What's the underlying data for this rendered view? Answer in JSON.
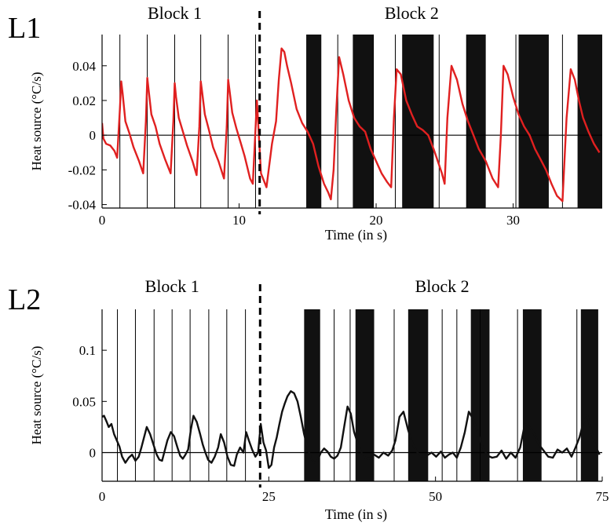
{
  "colors": {
    "trace_l1": "#e02020",
    "trace_l2": "#111111",
    "shade": "#111111",
    "axis": "#000000",
    "background": "#ffffff"
  },
  "chart_data": [
    {
      "panel_label": "L1",
      "type": "line",
      "xlabel": "Time (in s)",
      "ylabel": "Heat source (°C/s)",
      "xlim": [
        0,
        36.5
      ],
      "ylim": [
        -0.042,
        0.058
      ],
      "x_ticks": [
        0,
        10,
        20,
        30
      ],
      "y_ticks": [
        0.04,
        0.02,
        0,
        -0.02,
        -0.04
      ],
      "y_tick_labels": [
        "0.04",
        "0.02",
        "0",
        "-0.02",
        "-0.04"
      ],
      "grid": false,
      "zero_line": true,
      "block_labels": [
        {
          "label": "Block 1",
          "x": 5.3
        },
        {
          "label": "Block 2",
          "x": 22.6
        }
      ],
      "block_boundary": 11.5,
      "vertical_lines": [
        1.3,
        3.3,
        5.3,
        7.2,
        9.2,
        11.2,
        17.2,
        19.8,
        21.4,
        24.6,
        26.6,
        30.2,
        33.6
      ],
      "shaded_intervals": [
        [
          14.9,
          16.0
        ],
        [
          18.3,
          19.8
        ],
        [
          21.9,
          24.2
        ],
        [
          26.6,
          28.0
        ],
        [
          30.4,
          32.6
        ],
        [
          34.7,
          36.5
        ]
      ],
      "series": [
        {
          "x": [
            0,
            0.1,
            0.3,
            0.6,
            0.9,
            1.1,
            1.3,
            1.4,
            1.5,
            1.7,
            2.0,
            2.3,
            2.7,
            3.0,
            3.2,
            3.3,
            3.4,
            3.6,
            3.9,
            4.2,
            4.6,
            5.0,
            5.2,
            5.3,
            5.4,
            5.6,
            5.9,
            6.2,
            6.6,
            6.9,
            7.1,
            7.2,
            7.3,
            7.5,
            7.8,
            8.1,
            8.5,
            8.9,
            9.1,
            9.2,
            9.3,
            9.5,
            9.8,
            10.1,
            10.4,
            10.8,
            11.0,
            11.3,
            11.6,
            12.0,
            12.4,
            12.7,
            12.9,
            13.1,
            13.3,
            13.5,
            13.8,
            14.2,
            14.6,
            15.0,
            15.4,
            15.8,
            16.2,
            16.5,
            16.7,
            16.9,
            17.1,
            17.3,
            17.6,
            18.0,
            18.4,
            18.8,
            19.2,
            19.6,
            20.0,
            20.4,
            20.8,
            21.1,
            21.3,
            21.5,
            21.8,
            22.2,
            22.6,
            23.0,
            23.4,
            23.8,
            24.2,
            24.5,
            24.8,
            25.0,
            25.2,
            25.5,
            25.9,
            26.3,
            26.7,
            27.1,
            27.5,
            28.0,
            28.5,
            28.9,
            29.1,
            29.3,
            29.6,
            30.0,
            30.4,
            30.8,
            31.2,
            31.6,
            32.0,
            32.4,
            32.8,
            33.2,
            33.6,
            33.9,
            34.2,
            34.5,
            34.8,
            35.1,
            35.5,
            35.9,
            36.3
          ],
          "y": [
            0.007,
            -0.002,
            -0.005,
            -0.006,
            -0.009,
            -0.013,
            0.015,
            0.031,
            0.024,
            0.008,
            0.001,
            -0.007,
            -0.015,
            -0.022,
            0.008,
            0.033,
            0.026,
            0.012,
            0.005,
            -0.005,
            -0.014,
            -0.022,
            0.008,
            0.03,
            0.022,
            0.01,
            0.002,
            -0.006,
            -0.015,
            -0.023,
            0.005,
            0.031,
            0.025,
            0.012,
            0.003,
            -0.007,
            -0.015,
            -0.025,
            0.005,
            0.032,
            0.026,
            0.013,
            0.004,
            -0.004,
            -0.012,
            -0.025,
            -0.028,
            0.02,
            -0.022,
            -0.03,
            -0.005,
            0.008,
            0.032,
            0.05,
            0.048,
            0.04,
            0.03,
            0.015,
            0.007,
            0.002,
            -0.005,
            -0.018,
            -0.028,
            -0.033,
            -0.037,
            -0.02,
            0.015,
            0.045,
            0.035,
            0.02,
            0.01,
            0.005,
            0.002,
            -0.008,
            -0.015,
            -0.022,
            -0.027,
            -0.03,
            0.01,
            0.038,
            0.035,
            0.02,
            0.012,
            0.005,
            0.003,
            0.0,
            -0.008,
            -0.015,
            -0.022,
            -0.028,
            0.01,
            0.04,
            0.032,
            0.018,
            0.008,
            0.0,
            -0.008,
            -0.015,
            -0.025,
            -0.03,
            0.0,
            0.04,
            0.035,
            0.022,
            0.012,
            0.005,
            0.0,
            -0.008,
            -0.014,
            -0.02,
            -0.028,
            -0.035,
            -0.038,
            0.01,
            0.038,
            0.032,
            0.02,
            0.01,
            0.002,
            -0.005,
            -0.01
          ]
        }
      ]
    },
    {
      "panel_label": "L2",
      "type": "line",
      "xlabel": "Time (in s)",
      "ylabel": "Heat source (°C/s)",
      "xlim": [
        0,
        75
      ],
      "ylim": [
        -0.028,
        0.14
      ],
      "x_ticks": [
        0,
        25,
        50,
        75
      ],
      "y_ticks": [
        0.1,
        0.05,
        0
      ],
      "y_tick_labels": [
        "0.1",
        "0.05",
        "0"
      ],
      "grid": false,
      "zero_line": true,
      "block_labels": [
        {
          "label": "Block 1",
          "x": 10.5
        },
        {
          "label": "Block 2",
          "x": 51
        }
      ],
      "block_boundary": 23.7,
      "vertical_lines": [
        2.3,
        5.0,
        7.8,
        10.5,
        13.2,
        16.0,
        18.7,
        21.5,
        34.8,
        37.2,
        43.8,
        51.0,
        53.2,
        56.7,
        62.3,
        71.2
      ],
      "shaded_intervals": [
        [
          30.3,
          32.7
        ],
        [
          38.0,
          40.8
        ],
        [
          45.9,
          48.9
        ],
        [
          55.3,
          58.1
        ],
        [
          63.1,
          65.9
        ],
        [
          71.8,
          74.4
        ]
      ],
      "series": [
        {
          "x": [
            0,
            0.3,
            0.7,
            1.0,
            1.4,
            1.8,
            2.2,
            2.6,
            3.0,
            3.5,
            4.0,
            4.5,
            5.0,
            5.5,
            5.9,
            6.3,
            6.7,
            7.2,
            7.7,
            8.2,
            8.6,
            9.0,
            9.4,
            9.8,
            10.3,
            10.8,
            11.3,
            11.7,
            12.1,
            12.5,
            12.9,
            13.3,
            13.7,
            14.2,
            14.7,
            15.1,
            15.5,
            15.9,
            16.4,
            16.9,
            17.4,
            17.8,
            18.3,
            18.8,
            19.3,
            19.8,
            20.2,
            20.7,
            21.2,
            21.6,
            22.0,
            22.5,
            23.0,
            23.4,
            23.8,
            24.2,
            24.6,
            25.0,
            25.4,
            25.8,
            26.2,
            26.6,
            27.0,
            27.4,
            27.8,
            28.3,
            28.8,
            29.3,
            29.8,
            30.3,
            30.8,
            31.3,
            31.8,
            32.3,
            32.8,
            33.3,
            33.8,
            34.3,
            34.8,
            35.3,
            35.8,
            36.3,
            36.8,
            37.3,
            37.8,
            38.5,
            39.2,
            40.0,
            40.8,
            41.5,
            42.2,
            42.9,
            43.5,
            44.0,
            44.6,
            45.2,
            45.9,
            46.6,
            47.3,
            48.0,
            48.7,
            49.4,
            50.1,
            50.8,
            51.4,
            52.0,
            52.6,
            53.2,
            53.8,
            54.4,
            55.0,
            55.7,
            56.4,
            57.1,
            57.8,
            58.5,
            59.2,
            59.9,
            60.6,
            61.3,
            62.0,
            62.7,
            63.4,
            64.1,
            64.8,
            65.5,
            66.2,
            66.9,
            67.6,
            68.3,
            69.0,
            69.7,
            70.4,
            71.0,
            71.6,
            72.2,
            72.8,
            73.4,
            74.0,
            74.6
          ],
          "y": [
            0.035,
            0.036,
            0.03,
            0.025,
            0.028,
            0.018,
            0.012,
            0.006,
            -0.004,
            -0.01,
            -0.005,
            -0.002,
            -0.008,
            -0.004,
            0.005,
            0.015,
            0.025,
            0.018,
            0.008,
            -0.002,
            -0.007,
            -0.008,
            0.002,
            0.012,
            0.02,
            0.016,
            0.005,
            -0.003,
            -0.006,
            -0.002,
            0.003,
            0.022,
            0.036,
            0.03,
            0.018,
            0.008,
            0.0,
            -0.007,
            -0.01,
            -0.004,
            0.005,
            0.018,
            0.01,
            -0.004,
            -0.012,
            -0.013,
            -0.002,
            0.005,
            0.0,
            0.02,
            0.012,
            0.003,
            -0.004,
            0.0,
            0.028,
            0.01,
            0.002,
            -0.015,
            -0.012,
            0.005,
            0.015,
            0.028,
            0.04,
            0.048,
            0.055,
            0.06,
            0.058,
            0.05,
            0.035,
            0.018,
            0.005,
            -0.005,
            -0.01,
            -0.008,
            0.0,
            0.004,
            0.001,
            -0.004,
            -0.006,
            -0.003,
            0.005,
            0.025,
            0.045,
            0.038,
            0.02,
            0.006,
            -0.004,
            -0.006,
            -0.002,
            -0.005,
            0.0,
            -0.003,
            0.002,
            0.012,
            0.035,
            0.04,
            0.022,
            0.008,
            0.0,
            -0.004,
            -0.003,
            0.0,
            -0.004,
            0.001,
            -0.005,
            -0.002,
            0.0,
            -0.005,
            0.005,
            0.02,
            0.04,
            0.032,
            0.018,
            0.005,
            -0.003,
            -0.005,
            -0.004,
            0.002,
            -0.006,
            0.0,
            -0.005,
            0.005,
            0.028,
            0.025,
            0.018,
            0.008,
            0.002,
            -0.004,
            -0.005,
            0.003,
            0.0,
            0.004,
            -0.004,
            0.005,
            0.015,
            0.03,
            0.036,
            0.02,
            0.006,
            -0.002
          ]
        }
      ]
    }
  ]
}
